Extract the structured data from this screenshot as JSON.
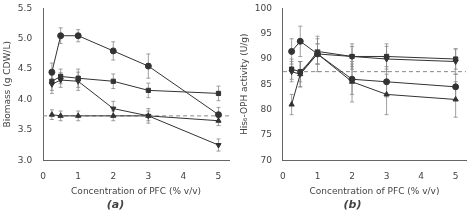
{
  "chart_data": [
    {
      "type": "line",
      "title": "(a)",
      "xlabel": "Concentration of PFC (% v/v)",
      "ylabel": "Biomass (g CDW/L)",
      "xlim": [
        0,
        5.3
      ],
      "ylim": [
        3.0,
        5.5
      ],
      "xticks": [
        0,
        1,
        2,
        3,
        4,
        5
      ],
      "yticks": [
        {
          "value": 3.0,
          "label": "3.0"
        },
        3.5,
        {
          "value": 4.0,
          "label": "4.0"
        },
        4.5,
        {
          "value": 5.0,
          "label": "5.0"
        },
        5.5
      ],
      "grid": false,
      "reference_line": {
        "y": 3.73,
        "color": "#888888",
        "line_style": "dashed"
      },
      "yerr_color": "#888888",
      "x": [
        0.25,
        0.5,
        1,
        2,
        3,
        5
      ],
      "series": [
        {
          "color": "#333333",
          "marker": "circle",
          "values": [
            4.45,
            5.05,
            5.05,
            4.8,
            4.55,
            3.75
          ],
          "yerr": [
            0.15,
            0.13,
            0.1,
            0.15,
            0.2,
            0.12
          ]
        },
        {
          "color": "#333333",
          "marker": "square",
          "values": [
            4.3,
            4.38,
            4.35,
            4.3,
            4.15,
            4.1
          ],
          "yerr": [
            0.15,
            0.12,
            0.15,
            0.12,
            0.12,
            0.12
          ]
        },
        {
          "color": "#333333",
          "marker": "triangle_down",
          "values": [
            4.25,
            4.32,
            4.3,
            3.85,
            3.73,
            3.25
          ],
          "yerr": [
            0.15,
            0.12,
            0.15,
            0.12,
            0.12,
            0.1
          ]
        },
        {
          "color": "#333333",
          "marker": "triangle_up",
          "values": [
            3.75,
            3.73,
            3.73,
            3.73,
            3.73,
            3.65
          ],
          "yerr": [
            0.08,
            0.08,
            0.08,
            0.08,
            0.08,
            0.08
          ]
        }
      ]
    },
    {
      "type": "line",
      "title": "(b)",
      "xlabel": "Concentration of PFC (% v/v)",
      "ylabel": "His₆-OPH activity (U/g)",
      "xlim": [
        0,
        5.3
      ],
      "ylim": [
        70,
        100
      ],
      "xticks": [
        0,
        1,
        2,
        3,
        4,
        5
      ],
      "yticks": [
        70,
        75,
        80,
        85,
        90,
        95,
        100
      ],
      "grid": false,
      "reference_line": {
        "y": 87.5,
        "color": "#888888",
        "line_style": "dashed"
      },
      "yerr_color": "#888888",
      "x": [
        0.25,
        0.5,
        1,
        2,
        3,
        5
      ],
      "series": [
        {
          "color": "#333333",
          "marker": "circle",
          "values": [
            91.5,
            93.5,
            91.0,
            86.0,
            85.5,
            84.5
          ],
          "yerr": [
            2.5,
            3.0,
            2.0,
            3.0,
            3.0,
            2.5
          ]
        },
        {
          "color": "#333333",
          "marker": "square",
          "values": [
            88.0,
            87.5,
            91.0,
            90.5,
            90.5,
            90.0
          ],
          "yerr": [
            2.0,
            2.0,
            2.0,
            2.0,
            2.5,
            2.0
          ]
        },
        {
          "color": "#333333",
          "marker": "triangle_down",
          "values": [
            87.5,
            87.0,
            91.5,
            90.5,
            90.0,
            89.5
          ],
          "yerr": [
            2.0,
            2.5,
            2.5,
            2.5,
            2.5,
            2.5
          ]
        },
        {
          "color": "#333333",
          "marker": "triangle_up",
          "values": [
            81.0,
            87.0,
            91.0,
            85.5,
            83.0,
            82.0
          ],
          "yerr": [
            2.0,
            2.5,
            3.5,
            4.0,
            4.0,
            3.5
          ]
        }
      ]
    }
  ]
}
